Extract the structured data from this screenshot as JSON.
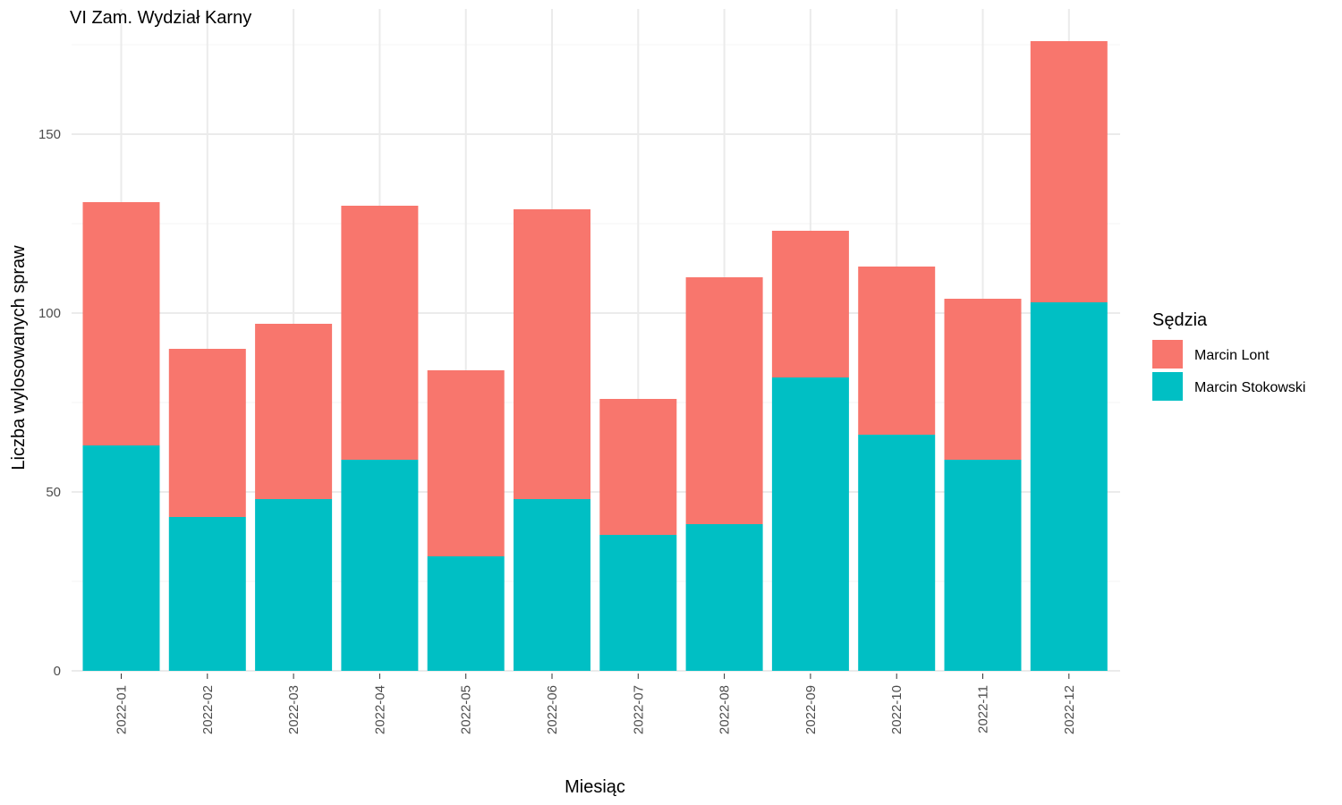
{
  "chart_data": {
    "type": "bar",
    "stacked": true,
    "title": "VI Zam. Wydział Karny",
    "xlabel": "Miesiąc",
    "ylabel": "Liczba wylosowanych spraw",
    "categories": [
      "2022-01",
      "2022-02",
      "2022-03",
      "2022-04",
      "2022-05",
      "2022-06",
      "2022-07",
      "2022-08",
      "2022-09",
      "2022-10",
      "2022-11",
      "2022-12"
    ],
    "series": [
      {
        "name": "Marcin Stokowski",
        "color": "#00BFC4",
        "values": [
          63,
          43,
          48,
          59,
          32,
          48,
          38,
          41,
          82,
          66,
          59,
          103
        ]
      },
      {
        "name": "Marcin Lont",
        "color": "#F8766D",
        "values": [
          68,
          47,
          49,
          71,
          52,
          81,
          38,
          69,
          41,
          47,
          45,
          73
        ]
      }
    ],
    "ylim": [
      0,
      176
    ],
    "yticks": [
      0,
      50,
      100,
      150
    ],
    "grid": true,
    "legend": {
      "title": "Sędzia",
      "position": "right",
      "entries": [
        "Marcin Lont",
        "Marcin Stokowski"
      ]
    }
  }
}
